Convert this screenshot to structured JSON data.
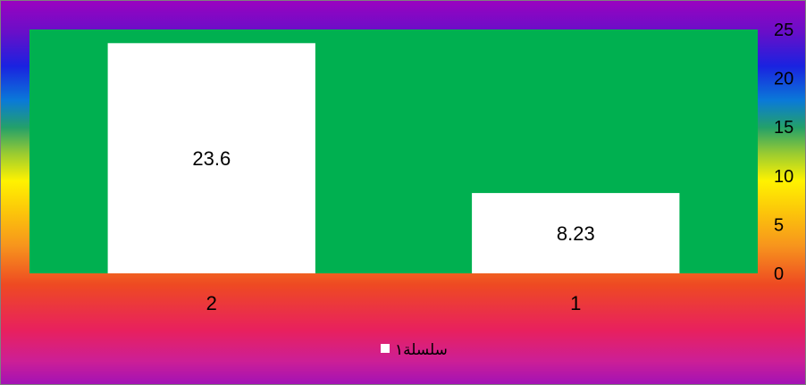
{
  "chart_data": {
    "type": "bar",
    "categories": [
      "2",
      "1"
    ],
    "series": [
      {
        "name": "سلسلة١",
        "values": [
          23.6,
          8.23
        ]
      }
    ],
    "data_labels": [
      "23.6",
      "8.23"
    ],
    "y_ticks": [
      "0",
      "5",
      "10",
      "15",
      "20",
      "25"
    ],
    "ylim": [
      0,
      25
    ],
    "y_axis_side": "right",
    "grid": false,
    "legend_position": "bottom",
    "title": "",
    "xlabel": "",
    "ylabel": ""
  },
  "colors": {
    "plot_background": "#00b050",
    "bar_fill": "#ffffff",
    "chart_background": "rainbow-gradient"
  }
}
